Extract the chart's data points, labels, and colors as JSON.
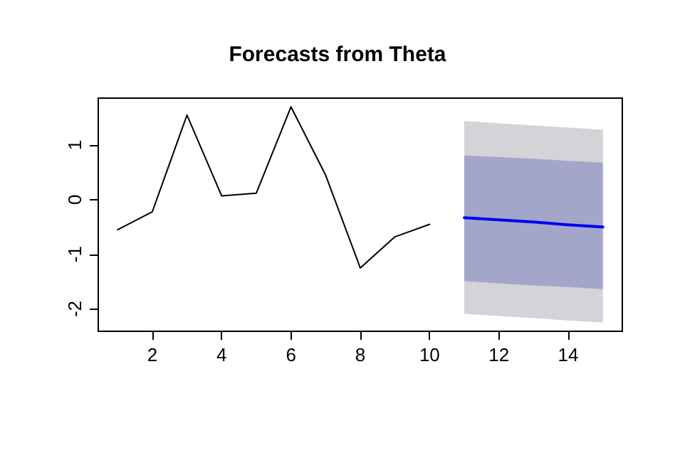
{
  "chart_data": {
    "type": "line",
    "title": "Forecasts from Theta",
    "series": [
      {
        "color": "#000000",
        "x": [
          1,
          2,
          3,
          4,
          5,
          6,
          7,
          8,
          9,
          10
        ],
        "values": [
          -0.55,
          -0.22,
          1.55,
          0.07,
          0.12,
          1.7,
          0.45,
          -1.25,
          -0.68,
          -0.45
        ]
      },
      {
        "color": "#d3d3d8",
        "x": [
          11,
          12,
          13,
          14,
          15
        ],
        "values": [
          null,
          null,
          null,
          null,
          null
        ],
        "lower": [
          -2.09,
          -2.13,
          -2.17,
          -2.21,
          -2.25
        ],
        "upper": [
          1.44,
          1.4,
          1.36,
          1.32,
          1.28
        ]
      },
      {
        "color": "#0000ee",
        "x": [
          11,
          12,
          13,
          14,
          15
        ],
        "values": [
          -0.33,
          -0.37,
          -0.41,
          -0.46,
          -0.5
        ],
        "lower": [
          -1.49,
          -1.53,
          -1.57,
          -1.6,
          -1.64
        ],
        "upper": [
          0.81,
          0.78,
          0.75,
          0.71,
          0.68
        ]
      }
    ],
    "xlim": [
      0.44,
      15.56
    ],
    "xticks": [
      2,
      4,
      6,
      8,
      10,
      12,
      14
    ],
    "ylim": [
      -2.41,
      1.86
    ],
    "yticks": [
      -2,
      -1,
      0,
      1
    ],
    "marker": "none",
    "line_style": "solid"
  }
}
